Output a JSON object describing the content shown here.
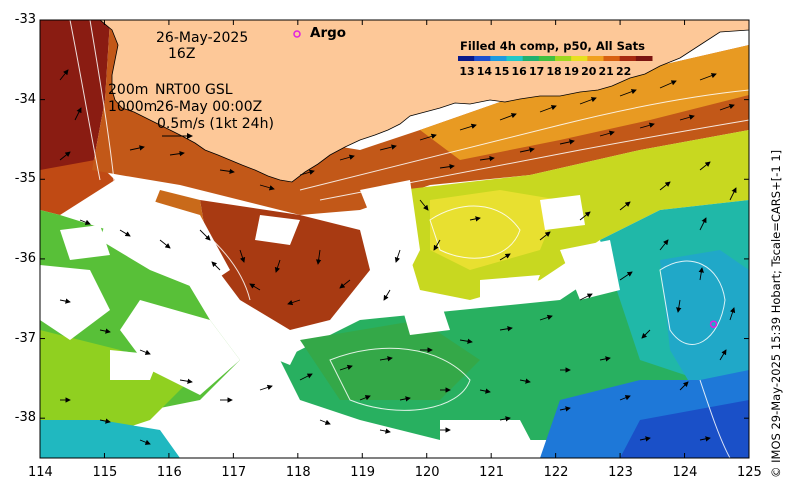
{
  "annotations": {
    "date": "26-May-2025",
    "time": "16Z",
    "depth_shallow": "200m",
    "depth_deep": "1000m",
    "dataset": "NRT00 GSL",
    "analysis_time": "26-May 00:00Z",
    "velocity_scale": "0.5m/s (1kt 24h)"
  },
  "legend": {
    "title": "Filled 4h comp, p50, All Sats",
    "argo_label": "Argo",
    "ticks": [
      "13",
      "14",
      "15",
      "16",
      "17",
      "18",
      "19",
      "20",
      "21",
      "22"
    ],
    "colors": [
      "#0a1a8a",
      "#1e50d0",
      "#1e9be0",
      "#20c8c8",
      "#20b070",
      "#40c040",
      "#a0d820",
      "#e8e020",
      "#f0a020",
      "#d86010",
      "#a82a10",
      "#7a1410"
    ]
  },
  "argo_marker": {
    "lon": 124.45,
    "lat": -36.82,
    "color": "#e020e0"
  },
  "credit": "© IMOS 29-May-2025 15:39 Hobart; Tscale=CARS+[-1 1]",
  "axes": {
    "x_ticks": [
      "114",
      "115",
      "116",
      "117",
      "118",
      "119",
      "120",
      "121",
      "122",
      "123",
      "124",
      "125"
    ],
    "y_ticks": [
      "-33",
      "-34",
      "-35",
      "-36",
      "-37",
      "-38"
    ],
    "xlim": [
      114,
      125
    ],
    "ylim": [
      -38.5,
      -33
    ]
  },
  "colors": {
    "land": "#fdc898",
    "coast": "#000000",
    "contour": "#ffffff"
  }
}
